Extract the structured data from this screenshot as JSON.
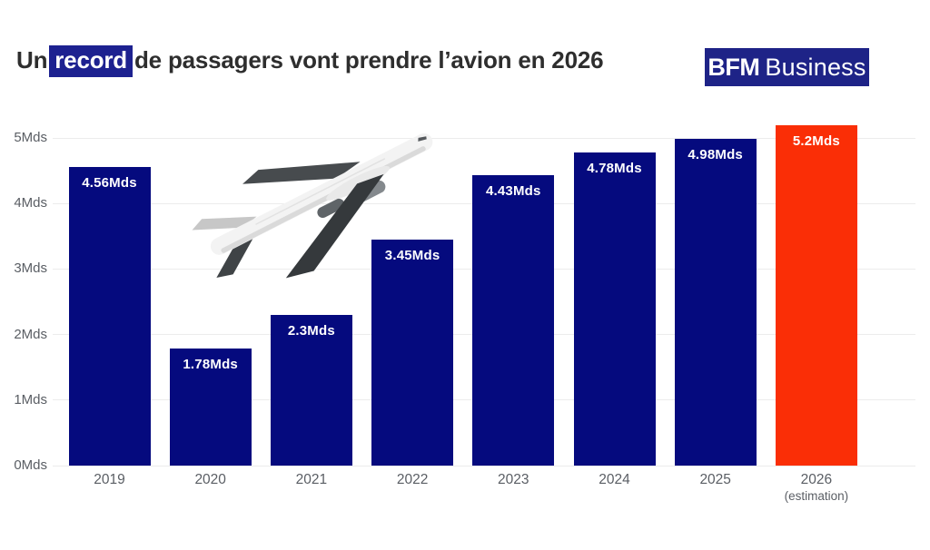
{
  "header": {
    "title_prefix": "Un",
    "title_highlight": "record",
    "title_suffix": "de passagers vont prendre l’avion en 2026",
    "logo_bold": "BFM",
    "logo_light": "Business"
  },
  "chart_data": {
    "type": "bar",
    "title": "Un record de passagers vont prendre l’avion en 2026",
    "unit": "Mds",
    "categories": [
      "2019",
      "2020",
      "2021",
      "2022",
      "2023",
      "2024",
      "2025",
      "2026"
    ],
    "category_notes": [
      "",
      "",
      "",
      "",
      "",
      "",
      "",
      "(estimation)"
    ],
    "values": [
      4.56,
      1.78,
      2.3,
      3.45,
      4.43,
      4.78,
      4.98,
      5.2
    ],
    "bar_labels": [
      "4.56Mds",
      "1.78Mds",
      "2.3Mds",
      "3.45Mds",
      "4.43Mds",
      "4.78Mds",
      "4.98Mds",
      "5.2Mds"
    ],
    "highlight_index": 7,
    "yticks": [
      0,
      1,
      2,
      3,
      4,
      5
    ],
    "ytick_labels": [
      "0Mds",
      "1Mds",
      "2Mds",
      "3Mds",
      "4Mds",
      "5Mds"
    ],
    "ylim": [
      0,
      5.55
    ],
    "grid": true,
    "legend": null,
    "colors": {
      "bar": "#050a7e",
      "highlight_bar": "#fa2e06",
      "value_label": "#ffffff",
      "axis_text": "#5a5e64",
      "gridline": "#ececec",
      "title_text": "#2e2e2e",
      "title_highlight_bg": "#1d2190",
      "logo_bg": "#1e2387"
    }
  },
  "decor": {
    "plane_icon": "airplane-climbing"
  }
}
